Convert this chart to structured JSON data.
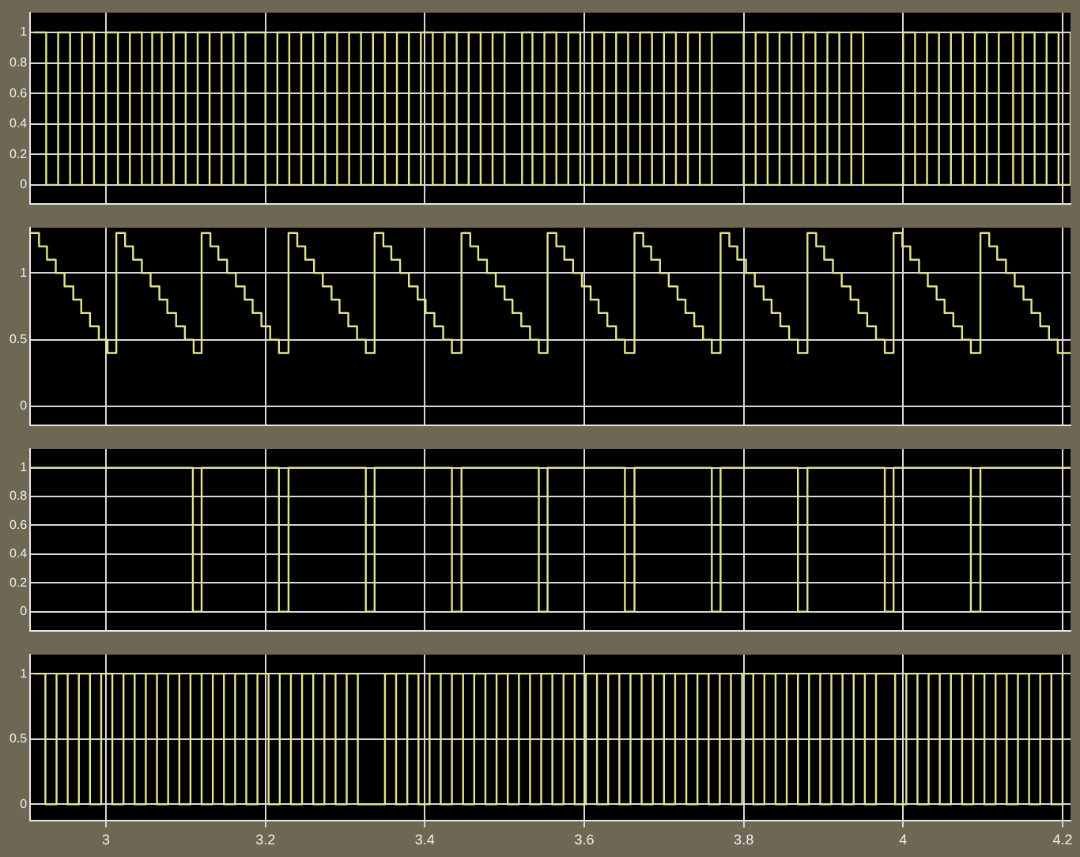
{
  "chart_data": [
    {
      "type": "step",
      "x": [
        2.91,
        2.925,
        2.94,
        2.955,
        2.97,
        2.985,
        3.0,
        3.015,
        3.03,
        3.045,
        3.058,
        3.07,
        3.085,
        3.1,
        3.115,
        3.13,
        3.145,
        3.16,
        3.175,
        3.2,
        3.215,
        3.23,
        3.245,
        3.26,
        3.275,
        3.29,
        3.305,
        3.32,
        3.335,
        3.35,
        3.365,
        3.38,
        3.395,
        3.41,
        3.425,
        3.44,
        3.455,
        3.47,
        3.485,
        3.5,
        3.522,
        3.535,
        3.55,
        3.565,
        3.58,
        3.595,
        3.61,
        3.625,
        3.64,
        3.655,
        3.67,
        3.685,
        3.7,
        3.715,
        3.73,
        3.745,
        3.76,
        3.8,
        3.815,
        3.83,
        3.845,
        3.86,
        3.875,
        3.89,
        3.905,
        3.92,
        3.935,
        3.95,
        4.0,
        4.015,
        4.03,
        4.045,
        4.06,
        4.075,
        4.09,
        4.105,
        4.12,
        4.138,
        4.15,
        4.165,
        4.18,
        4.195,
        4.21
      ],
      "series": [
        {
          "color": "#e4e48c",
          "values": [
            1,
            0,
            1,
            0,
            1,
            0,
            1,
            0,
            1,
            0,
            1,
            0,
            1,
            0,
            1,
            0,
            1,
            0,
            1,
            0,
            1,
            0,
            1,
            0,
            1,
            0,
            1,
            0,
            1,
            0,
            1,
            0,
            1,
            0,
            1,
            0,
            1,
            0,
            1,
            0,
            1,
            0,
            1,
            0,
            1,
            0,
            1,
            0,
            1,
            0,
            1,
            0,
            1,
            0,
            1,
            0,
            1,
            0,
            1,
            0,
            1,
            0,
            1,
            0,
            1,
            0,
            1,
            0,
            1,
            0,
            1,
            0,
            1,
            0,
            1,
            0,
            1,
            0,
            1,
            0,
            1,
            0,
            1
          ]
        }
      ],
      "xlim": [
        2.905,
        4.21
      ],
      "xticks": [
        3,
        3.2,
        3.4,
        3.6,
        3.8,
        4,
        4.2
      ],
      "ylim": [
        -0.127,
        1.13
      ],
      "yticks": [
        0,
        0.2,
        0.4,
        0.6,
        0.8,
        1
      ],
      "grid": true,
      "tick_labels": "y",
      "marker": "none",
      "line_style": "solid"
    },
    {
      "type": "step",
      "x": [
        2.905,
        2.916,
        2.926,
        2.937,
        2.948,
        2.959,
        2.969,
        2.98,
        2.991,
        3.002,
        3.013,
        3.024,
        3.034,
        3.045,
        3.056,
        3.067,
        3.077,
        3.088,
        3.099,
        3.11,
        3.12,
        3.131,
        3.141,
        3.152,
        3.163,
        3.174,
        3.184,
        3.195,
        3.206,
        3.217,
        3.229,
        3.24,
        3.25,
        3.261,
        3.272,
        3.283,
        3.293,
        3.304,
        3.315,
        3.326,
        3.337,
        3.348,
        3.358,
        3.369,
        3.38,
        3.391,
        3.401,
        3.412,
        3.423,
        3.434,
        3.446,
        3.457,
        3.467,
        3.478,
        3.489,
        3.5,
        3.51,
        3.521,
        3.532,
        3.543,
        3.554,
        3.565,
        3.575,
        3.586,
        3.597,
        3.608,
        3.618,
        3.629,
        3.64,
        3.651,
        3.663,
        3.674,
        3.684,
        3.695,
        3.706,
        3.717,
        3.727,
        3.738,
        3.749,
        3.76,
        3.771,
        3.782,
        3.792,
        3.803,
        3.814,
        3.825,
        3.835,
        3.846,
        3.857,
        3.868,
        3.88,
        3.891,
        3.901,
        3.912,
        3.923,
        3.934,
        3.944,
        3.955,
        3.966,
        3.977,
        3.988,
        3.999,
        4.009,
        4.02,
        4.031,
        4.042,
        4.052,
        4.063,
        4.074,
        4.085,
        4.097,
        4.108,
        4.118,
        4.129,
        4.14,
        4.151,
        4.161,
        4.172,
        4.183,
        4.194,
        4.21
      ],
      "series": [
        {
          "color": "#e4e48c",
          "values": [
            1.3,
            1.2,
            1.1,
            1,
            0.9,
            0.8,
            0.7,
            0.6,
            0.5,
            0.4,
            1.3,
            1.2,
            1.1,
            1,
            0.9,
            0.8,
            0.7,
            0.6,
            0.5,
            0.4,
            1.3,
            1.2,
            1.1,
            1,
            0.9,
            0.8,
            0.7,
            0.6,
            0.5,
            0.4,
            1.3,
            1.2,
            1.1,
            1,
            0.9,
            0.8,
            0.7,
            0.6,
            0.5,
            0.4,
            1.3,
            1.2,
            1.1,
            1,
            0.9,
            0.8,
            0.7,
            0.6,
            0.5,
            0.4,
            1.3,
            1.2,
            1.1,
            1,
            0.9,
            0.8,
            0.7,
            0.6,
            0.5,
            0.4,
            1.3,
            1.2,
            1.1,
            1,
            0.9,
            0.8,
            0.7,
            0.6,
            0.5,
            0.4,
            1.3,
            1.2,
            1.1,
            1,
            0.9,
            0.8,
            0.7,
            0.6,
            0.5,
            0.4,
            1.3,
            1.2,
            1.1,
            1,
            0.9,
            0.8,
            0.7,
            0.6,
            0.5,
            0.4,
            1.3,
            1.2,
            1.1,
            1,
            0.9,
            0.8,
            0.7,
            0.6,
            0.5,
            0.4,
            1.3,
            1.2,
            1.1,
            1,
            0.9,
            0.8,
            0.7,
            0.6,
            0.5,
            0.4,
            1.3,
            1.2,
            1.1,
            1,
            0.9,
            0.8,
            0.7,
            0.6,
            0.5,
            0.4,
            0.4
          ]
        }
      ],
      "xlim": [
        2.905,
        4.21
      ],
      "xticks": [
        3,
        3.2,
        3.4,
        3.6,
        3.8,
        4,
        4.2
      ],
      "ylim": [
        -0.145,
        1.34
      ],
      "yticks": [
        0,
        0.5,
        1
      ],
      "grid": true,
      "tick_labels": "y",
      "marker": "none",
      "line_style": "solid"
    },
    {
      "type": "step",
      "x": [
        2.905,
        3.109,
        3.12,
        3.217,
        3.229,
        3.326,
        3.337,
        3.434,
        3.446,
        3.543,
        3.554,
        3.651,
        3.663,
        3.76,
        3.771,
        3.868,
        3.88,
        3.977,
        3.988,
        4.085,
        4.097,
        4.21
      ],
      "series": [
        {
          "color": "#e4e48c",
          "values": [
            1,
            0,
            1,
            0,
            1,
            0,
            1,
            0,
            1,
            0,
            1,
            0,
            1,
            0,
            1,
            0,
            1,
            0,
            1,
            0,
            1,
            1
          ]
        }
      ],
      "xlim": [
        2.905,
        4.21
      ],
      "xticks": [
        3,
        3.2,
        3.4,
        3.6,
        3.8,
        4,
        4.2
      ],
      "ylim": [
        -0.136,
        1.13
      ],
      "yticks": [
        0,
        0.2,
        0.4,
        0.6,
        0.8,
        1
      ],
      "grid": true,
      "tick_labels": "y",
      "marker": "none",
      "line_style": "solid"
    },
    {
      "type": "step",
      "x": [
        2.91,
        2.924,
        2.938,
        2.952,
        2.966,
        2.98,
        2.994,
        3.008,
        3.022,
        3.036,
        3.05,
        3.064,
        3.078,
        3.092,
        3.106,
        3.12,
        3.134,
        3.148,
        3.162,
        3.176,
        3.19,
        3.204,
        3.218,
        3.232,
        3.246,
        3.26,
        3.274,
        3.288,
        3.302,
        3.316,
        3.35,
        3.364,
        3.378,
        3.392,
        3.406,
        3.42,
        3.434,
        3.448,
        3.462,
        3.476,
        3.49,
        3.504,
        3.518,
        3.532,
        3.546,
        3.56,
        3.574,
        3.588,
        3.602,
        3.616,
        3.63,
        3.644,
        3.658,
        3.672,
        3.686,
        3.7,
        3.714,
        3.728,
        3.742,
        3.756,
        3.77,
        3.784,
        3.798,
        3.812,
        3.826,
        3.84,
        3.854,
        3.868,
        3.882,
        3.896,
        3.91,
        3.924,
        3.938,
        3.952,
        3.966,
        3.99,
        4.004,
        4.018,
        4.032,
        4.046,
        4.06,
        4.074,
        4.088,
        4.102,
        4.116,
        4.13,
        4.144,
        4.158,
        4.172,
        4.186,
        4.2
      ],
      "series": [
        {
          "color": "#e4e48c",
          "values": [
            1,
            0,
            1,
            0,
            1,
            0,
            1,
            0,
            1,
            0,
            1,
            0,
            1,
            0,
            1,
            0,
            1,
            0,
            1,
            0,
            1,
            0,
            1,
            0,
            1,
            0,
            1,
            0,
            1,
            0,
            1,
            0,
            1,
            0,
            1,
            0,
            1,
            0,
            1,
            0,
            1,
            0,
            1,
            0,
            1,
            0,
            1,
            0,
            1,
            0,
            1,
            0,
            1,
            0,
            1,
            0,
            1,
            0,
            1,
            0,
            1,
            0,
            1,
            0,
            1,
            0,
            1,
            0,
            1,
            0,
            1,
            0,
            1,
            0,
            1,
            0,
            1,
            0,
            1,
            0,
            1,
            0,
            1,
            0,
            1,
            0,
            1,
            0,
            1,
            0,
            1
          ]
        }
      ],
      "xlim": [
        2.905,
        4.21
      ],
      "xticks": [
        3,
        3.2,
        3.4,
        3.6,
        3.8,
        4,
        4.2
      ],
      "ylim": [
        -0.127,
        1.146
      ],
      "yticks": [
        0,
        0.5,
        1
      ],
      "grid": true,
      "marker": "none",
      "line_style": "solid"
    }
  ]
}
